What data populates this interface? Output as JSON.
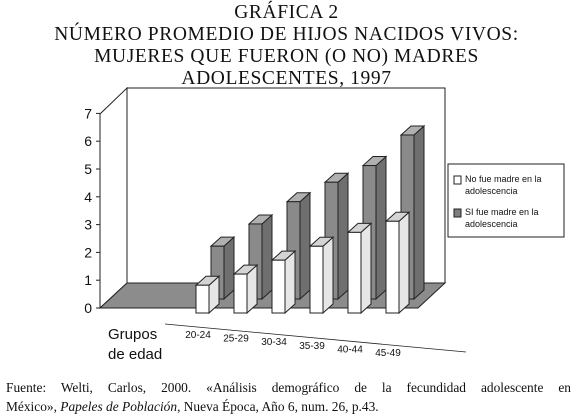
{
  "title_lines": [
    "GRÁFICA 2",
    "NÚMERO PROMEDIO DE HIJOS NACIDOS VIVOS:",
    "MUJERES QUE FUERON (O NO) MADRES",
    "ADOLESCENTES, 1997"
  ],
  "chart_data": {
    "type": "bar",
    "title": "GRÁFICA 2 NÚMERO PROMEDIO DE HIJOS NACIDOS VIVOS: MUJERES QUE FUERON (O NO) MADRES ADOLESCENTES, 1997",
    "xlabel_lines": [
      "Grupos",
      "de edad"
    ],
    "ylabel": "",
    "categories": [
      "20-24",
      "25-29",
      "30-34",
      "35-39",
      "40-44",
      "45-49"
    ],
    "series": [
      {
        "name_lines": [
          "No fue madre en la",
          "adolescencia"
        ],
        "color": "#ffffff",
        "values": [
          1.0,
          1.4,
          1.9,
          2.4,
          2.9,
          3.3
        ]
      },
      {
        "name_lines": [
          "SI fue madre en la",
          "adolescencia"
        ],
        "color": "#7f7f7f",
        "values": [
          1.9,
          2.7,
          3.5,
          4.2,
          4.8,
          5.9
        ]
      }
    ],
    "yticks": [
      "0",
      "1",
      "2",
      "3",
      "4",
      "5",
      "6",
      "7"
    ],
    "ylim": [
      0,
      7
    ],
    "grid": false,
    "style": "3d",
    "legend_position": "right"
  },
  "source": {
    "line1": "Fuente: Welti, Carlos, 2000. «Análisis demográfico de la fecundidad adolescente en",
    "line2_pre": "México», ",
    "line2_italic": "Papeles de Población",
    "line2_post": ", Nueva Época, Año 6, num. 26, p.43."
  }
}
